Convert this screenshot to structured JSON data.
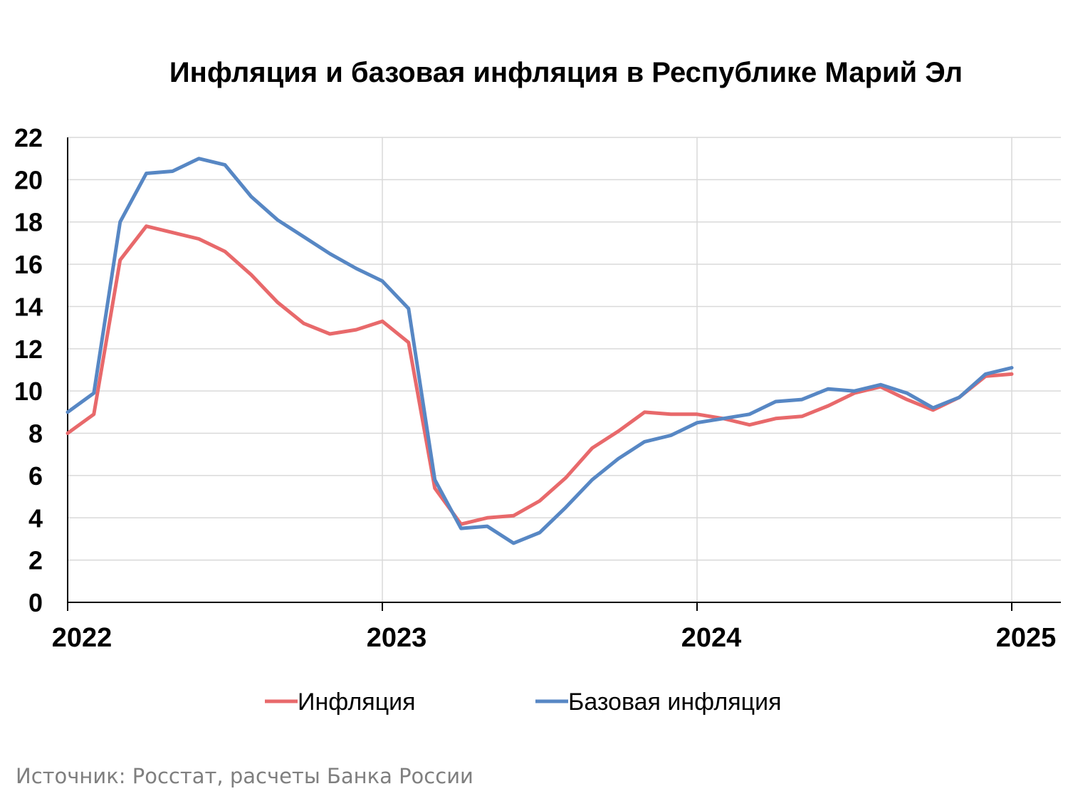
{
  "chart_data": {
    "type": "line",
    "title": "Инфляция и базовая инфляция в Республике Марий Эл",
    "xlabel": "",
    "ylabel": "",
    "x_tick_labels": [
      "2022",
      "2023",
      "2024",
      "2025"
    ],
    "y_ticks": [
      0,
      2,
      4,
      6,
      8,
      10,
      12,
      14,
      16,
      18,
      20,
      22
    ],
    "ylim": [
      0,
      22
    ],
    "grid": true,
    "legend_position": "bottom",
    "x": [
      "2022-01",
      "2022-02",
      "2022-03",
      "2022-04",
      "2022-05",
      "2022-06",
      "2022-07",
      "2022-08",
      "2022-09",
      "2022-10",
      "2022-11",
      "2022-12",
      "2023-01",
      "2023-02",
      "2023-03",
      "2023-04",
      "2023-05",
      "2023-06",
      "2023-07",
      "2023-08",
      "2023-09",
      "2023-10",
      "2023-11",
      "2023-12",
      "2024-01",
      "2024-02",
      "2024-03",
      "2024-04",
      "2024-05",
      "2024-06",
      "2024-07",
      "2024-08",
      "2024-09",
      "2024-10",
      "2024-11",
      "2024-12",
      "2025-01"
    ],
    "series": [
      {
        "name": "Инфляция",
        "color": "#e8696b",
        "values": [
          8.0,
          8.9,
          16.2,
          17.8,
          17.5,
          17.2,
          16.6,
          15.5,
          14.2,
          13.2,
          12.7,
          12.9,
          13.3,
          12.3,
          5.4,
          3.7,
          4.0,
          4.1,
          4.8,
          5.9,
          7.3,
          8.1,
          9.0,
          8.9,
          8.9,
          8.7,
          8.4,
          8.7,
          8.8,
          9.3,
          9.9,
          10.2,
          9.6,
          9.1,
          9.7,
          10.7,
          10.8
        ]
      },
      {
        "name": "Базовая инфляция",
        "color": "#5787c4",
        "values": [
          9.0,
          9.9,
          18.0,
          20.3,
          20.4,
          21.0,
          20.7,
          19.2,
          18.1,
          17.3,
          16.5,
          15.8,
          15.2,
          13.9,
          5.8,
          3.5,
          3.6,
          2.8,
          3.3,
          4.5,
          5.8,
          6.8,
          7.6,
          7.9,
          8.5,
          8.7,
          8.9,
          9.5,
          9.6,
          10.1,
          10.0,
          10.3,
          9.9,
          9.2,
          9.7,
          10.8,
          11.1
        ]
      }
    ]
  },
  "source_note": "Источник: Росстат, расчеты Банка России"
}
